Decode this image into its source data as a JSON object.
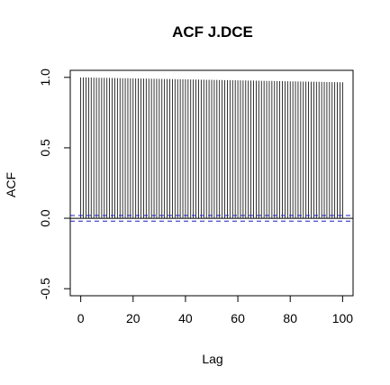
{
  "chart_data": {
    "type": "bar",
    "title": "ACF J.DCE",
    "xlabel": "Lag",
    "ylabel": "ACF",
    "xlim": [
      -4,
      104
    ],
    "ylim": [
      -0.55,
      1.05
    ],
    "x_ticks": [
      0,
      20,
      40,
      60,
      80,
      100
    ],
    "y_ticks": [
      -0.5,
      0.0,
      0.5,
      1.0
    ],
    "y_tick_labels": [
      "-0.5",
      "0.0",
      "0.5",
      "1.0"
    ],
    "lag_max": 100,
    "acf_start": 1.0,
    "acf_end": 0.965,
    "confidence_bound": 0.02,
    "colors": {
      "bars": "#000000",
      "zero_line": "#000000",
      "confidence": "#1f1fc8"
    }
  }
}
